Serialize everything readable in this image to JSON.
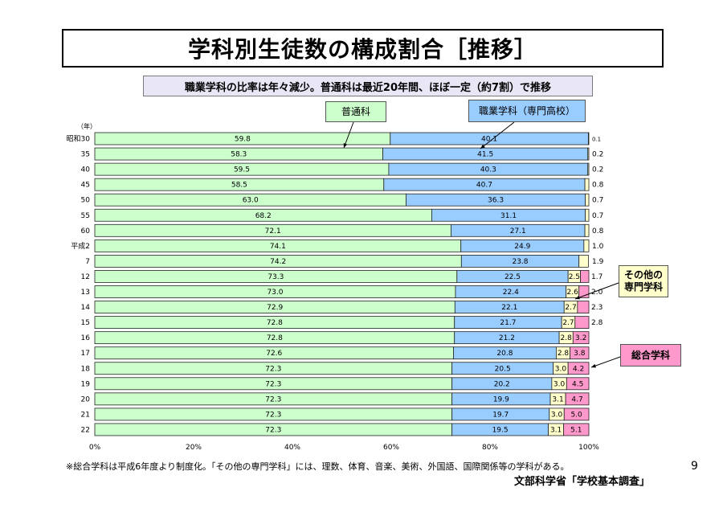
{
  "page": {
    "title": "学科別生徒数の構成割合［推移］",
    "subtitle": "職業学科の比率は年々減少。普通科は最近20年間、ほぼ一定（約7割）で推移",
    "footnote": "※総合学科は平成6年度より制度化。「その他の専門学科」には、理数、体育、音楽、美術、外国語、国際関係等の学科がある。",
    "page_number": "9",
    "source": "文部科学省「学校基本調査」"
  },
  "callouts": {
    "general": "普通科",
    "vocational": "職業学科（専門高校）",
    "other": "その他の\n専門学科",
    "sogo": "総合学科"
  },
  "colors": {
    "general": "#ccffcc",
    "vocational": "#99ccff",
    "other": "#ffffcc",
    "sogo": "#ff99cc"
  },
  "chart_data": {
    "type": "bar",
    "orientation": "horizontal-stacked-100",
    "year_unit": "（年）",
    "categories": [
      "昭和30",
      "35",
      "40",
      "45",
      "50",
      "55",
      "60",
      "平成2",
      "7",
      "12",
      "13",
      "14",
      "15",
      "16",
      "17",
      "18",
      "19",
      "20",
      "21",
      "22"
    ],
    "series": [
      {
        "name": "普通科",
        "values": [
          59.8,
          58.3,
          59.5,
          58.5,
          63.0,
          68.2,
          72.1,
          74.1,
          74.2,
          73.3,
          73.0,
          72.9,
          72.8,
          72.8,
          72.6,
          72.3,
          72.3,
          72.3,
          72.3,
          72.3
        ]
      },
      {
        "name": "職業学科（専門高校）",
        "values": [
          40.1,
          41.5,
          40.3,
          40.7,
          36.3,
          31.1,
          27.1,
          24.9,
          23.8,
          22.5,
          22.4,
          22.1,
          21.7,
          21.2,
          20.8,
          20.5,
          20.2,
          19.9,
          19.7,
          19.5
        ]
      },
      {
        "name": "その他の専門学科",
        "values": [
          0.1,
          0.2,
          0.2,
          0.8,
          0.7,
          0.7,
          0.8,
          1.0,
          1.9,
          2.5,
          2.6,
          2.7,
          2.7,
          2.8,
          2.8,
          3.0,
          3.0,
          3.1,
          3.0,
          3.1
        ]
      },
      {
        "name": "総合学科",
        "values": [
          0,
          0,
          0,
          0,
          0,
          0,
          0,
          0,
          0,
          1.7,
          2.0,
          2.3,
          2.8,
          3.2,
          3.8,
          4.2,
          4.5,
          4.7,
          5.0,
          5.1
        ]
      }
    ],
    "x_ticks": [
      "0%",
      "20%",
      "40%",
      "60%",
      "80%",
      "100%"
    ],
    "xlim": [
      0,
      100
    ]
  }
}
